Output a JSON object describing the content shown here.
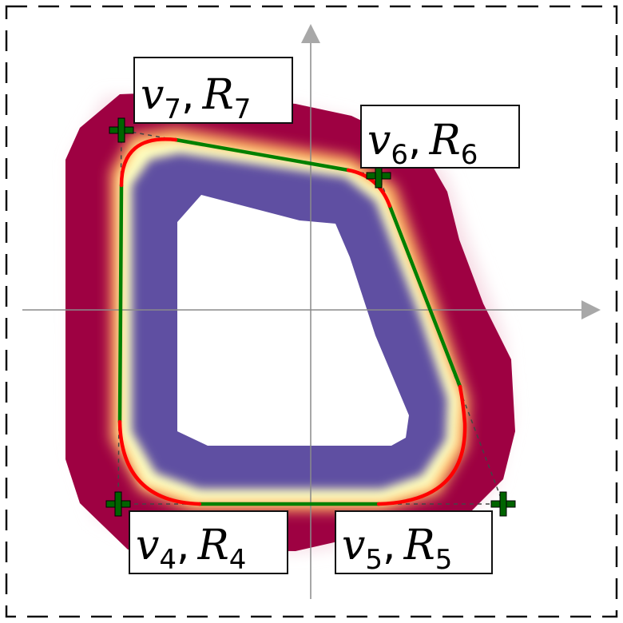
{
  "diagram": {
    "frame_style": "dashed",
    "axes": {
      "show": true,
      "color": "#8a8a8a",
      "arrow_color": "#a8a8a8"
    },
    "colors": {
      "outer_field": "#9e0142",
      "mid_field": "#fdae61",
      "transition": "#ffffbf",
      "inner_field": "#5e4fa2",
      "straight_segment": "#008000",
      "arc_segment": "#ff0000",
      "control_polygon": "#444444",
      "vertex_marker": "#006400",
      "pink_halo": "#f6dbe4"
    },
    "vertices": [
      {
        "id": "v4",
        "label_main": "v",
        "label_index": "4",
        "label_r": "R",
        "label_r_index": "4"
      },
      {
        "id": "v5",
        "label_main": "v",
        "label_index": "5",
        "label_r": "R",
        "label_r_index": "5"
      },
      {
        "id": "v6",
        "label_main": "v",
        "label_index": "6",
        "label_r": "R",
        "label_r_index": "6"
      },
      {
        "id": "v7",
        "label_main": "v",
        "label_index": "7",
        "label_r": "R",
        "label_r_index": "7"
      }
    ]
  }
}
